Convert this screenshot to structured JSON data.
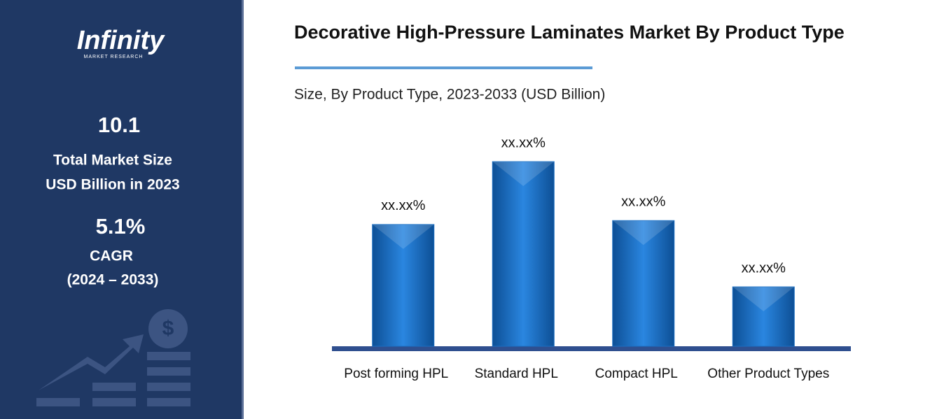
{
  "sidebar": {
    "logo": "Infinity",
    "logo_sub": "MARKET RESEARCH",
    "market_size": 10.1,
    "market_size_label_1": "Total Market Size",
    "market_size_label_2": "USD Billion in 2023",
    "cagr": "5.1%",
    "cagr_label": "CAGR",
    "cagr_period": "(2024 – 2033)"
  },
  "chart_data": {
    "type": "bar",
    "title": "Decorative High-Pressure Laminates Market By Product Type",
    "subtitle": "Size, By Product Type, 2023-2033 (USD Billion)",
    "categories": [
      "Post forming HPL",
      "Standard HPL",
      "Compact HPL",
      "Other Product Types"
    ],
    "values": [
      24.8,
      37.6,
      25.6,
      12.1
    ],
    "value_labels": [
      "xx.xx%",
      "xx.xx%",
      "xx.xx%",
      "xx.xx%"
    ],
    "color": "#1a6fc4"
  }
}
